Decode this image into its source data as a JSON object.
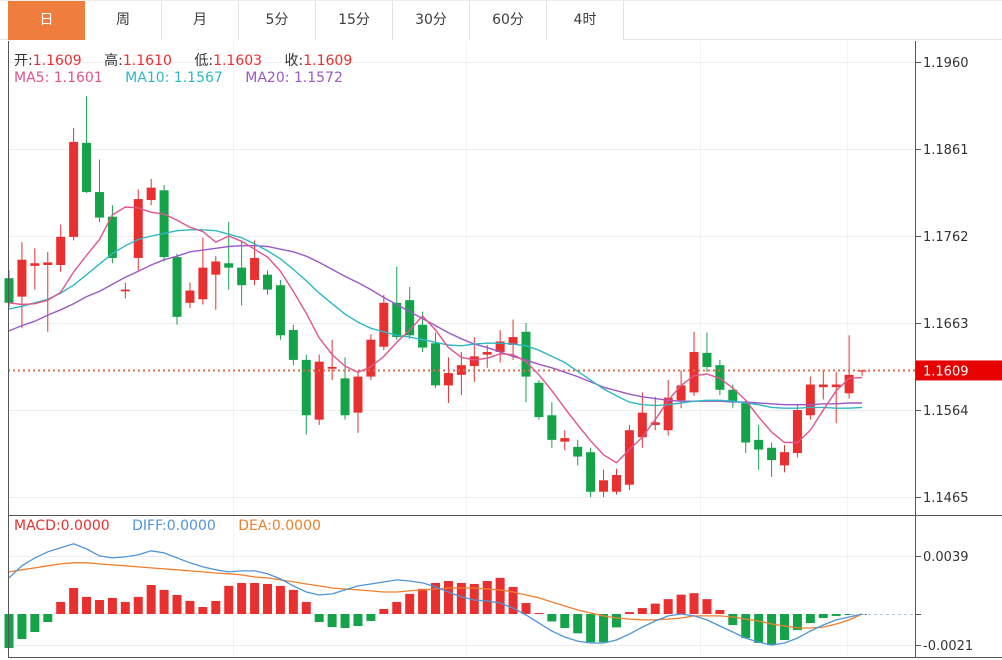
{
  "tabs": {
    "items": [
      {
        "label": "日",
        "active": true
      },
      {
        "label": "周",
        "active": false
      },
      {
        "label": "月",
        "active": false
      },
      {
        "label": "5分",
        "active": false
      },
      {
        "label": "15分",
        "active": false
      },
      {
        "label": "30分",
        "active": false
      },
      {
        "label": "60分",
        "active": false
      },
      {
        "label": "4时",
        "active": false
      }
    ]
  },
  "legend_ohlc": {
    "open_label": "开:",
    "open_value": "1.1609",
    "high_label": "高:",
    "high_value": "1.1610",
    "low_label": "低:",
    "low_value": "1.1603",
    "close_label": "收:",
    "close_value": "1.1609"
  },
  "legend_ma": {
    "ma5": "MA5: 1.1601",
    "ma10": "MA10: 1.1567",
    "ma20": "MA20: 1.1572"
  },
  "legend_macd": {
    "macd": "MACD:0.0000",
    "diff": "DIFF:0.0000",
    "dea": "DEA:0.0000"
  },
  "colors": {
    "up": "#e93030",
    "down": "#15a34a",
    "ma5": "#e0558c",
    "ma10": "#2fb8c4",
    "ma20": "#9b59c8",
    "diff": "#4f94d8",
    "dea": "#ee7f2d",
    "tab_active_bg": "#ef7e3e",
    "price_line": "#dd6a4a",
    "price_tag_bg": "#e60000",
    "grid": "#ededed",
    "vgrid": "#f2f2f2",
    "frame": "#555555",
    "zero_dash": "#a8cce4",
    "axis_text": "#333333"
  },
  "chart_data": [
    {
      "type": "candlestick",
      "title": "",
      "ylabel": "",
      "legend_position": "top-left",
      "grid": true,
      "y_ticks": [
        1.196,
        1.1861,
        1.1762,
        1.1663,
        1.1564,
        1.1465
      ],
      "ylim": [
        1.144,
        1.1985
      ],
      "current_price": 1.1609,
      "candles_ohlc": [
        [
          1.1714,
          1.1723,
          1.1681,
          1.1686
        ],
        [
          1.1693,
          1.1755,
          1.1657,
          1.1735
        ],
        [
          1.1728,
          1.1748,
          1.1701,
          1.1731
        ],
        [
          1.1729,
          1.1744,
          1.1653,
          1.1732
        ],
        [
          1.1729,
          1.1775,
          1.1721,
          1.1761
        ],
        [
          1.1761,
          1.1885,
          1.1757,
          1.1869
        ],
        [
          1.1868,
          1.1921,
          1.1811,
          1.1812
        ],
        [
          1.1812,
          1.1849,
          1.1778,
          1.1783
        ],
        [
          1.1784,
          1.1797,
          1.1731,
          1.1737
        ],
        [
          1.1699,
          1.1709,
          1.1691,
          1.1701
        ],
        [
          1.1737,
          1.1815,
          1.1723,
          1.1804
        ],
        [
          1.1803,
          1.1827,
          1.1797,
          1.1817
        ],
        [
          1.1814,
          1.182,
          1.1733,
          1.1738
        ],
        [
          1.1738,
          1.1742,
          1.1661,
          1.167
        ],
        [
          1.1686,
          1.1709,
          1.168,
          1.17
        ],
        [
          1.169,
          1.176,
          1.1684,
          1.1726
        ],
        [
          1.1718,
          1.1739,
          1.1678,
          1.1733
        ],
        [
          1.1731,
          1.1778,
          1.1701,
          1.1726
        ],
        [
          1.1726,
          1.1757,
          1.1683,
          1.1706
        ],
        [
          1.1712,
          1.1757,
          1.1706,
          1.1737
        ],
        [
          1.1718,
          1.1723,
          1.1695,
          1.1701
        ],
        [
          1.1706,
          1.1712,
          1.1644,
          1.1649
        ],
        [
          1.1655,
          1.1661,
          1.1615,
          1.1621
        ],
        [
          1.1621,
          1.1627,
          1.1536,
          1.1558
        ],
        [
          1.1553,
          1.1627,
          1.1547,
          1.1619
        ],
        [
          1.1611,
          1.1644,
          1.1598,
          1.1613
        ],
        [
          1.16,
          1.1624,
          1.1553,
          1.1558
        ],
        [
          1.1561,
          1.1608,
          1.1538,
          1.1602
        ],
        [
          1.1602,
          1.165,
          1.1598,
          1.1644
        ],
        [
          1.1636,
          1.1695,
          1.1632,
          1.1686
        ],
        [
          1.1686,
          1.1727,
          1.1644,
          1.1647
        ],
        [
          1.1689,
          1.1704,
          1.1645,
          1.1649
        ],
        [
          1.1661,
          1.1676,
          1.163,
          1.1635
        ],
        [
          1.164,
          1.1652,
          1.1589,
          1.1592
        ],
        [
          1.1592,
          1.1624,
          1.1572,
          1.1606
        ],
        [
          1.1604,
          1.163,
          1.1581,
          1.1615
        ],
        [
          1.1614,
          1.1647,
          1.1596,
          1.1625
        ],
        [
          1.1627,
          1.1638,
          1.1612,
          1.163
        ],
        [
          1.163,
          1.1655,
          1.1618,
          1.1642
        ],
        [
          1.1638,
          1.1667,
          1.1621,
          1.1647
        ],
        [
          1.1653,
          1.1663,
          1.1573,
          1.1602
        ],
        [
          1.1595,
          1.1598,
          1.1553,
          1.1556
        ],
        [
          1.1558,
          1.1573,
          1.1521,
          1.153
        ],
        [
          1.1528,
          1.1541,
          1.1518,
          1.1532
        ],
        [
          1.1522,
          1.153,
          1.1501,
          1.1511
        ],
        [
          1.1516,
          1.1521,
          1.1465,
          1.1471
        ],
        [
          1.1471,
          1.1496,
          1.1465,
          1.1484
        ],
        [
          1.1471,
          1.1497,
          1.1468,
          1.149
        ],
        [
          1.1479,
          1.1547,
          1.1473,
          1.1541
        ],
        [
          1.1533,
          1.1584,
          1.1521,
          1.1561
        ],
        [
          1.1547,
          1.1579,
          1.1541,
          1.155
        ],
        [
          1.1541,
          1.1598,
          1.1535,
          1.1578
        ],
        [
          1.1575,
          1.1609,
          1.1566,
          1.1592
        ],
        [
          1.1584,
          1.1653,
          1.158,
          1.163
        ],
        [
          1.1629,
          1.1652,
          1.1607,
          1.1613
        ],
        [
          1.1615,
          1.1621,
          1.1581,
          1.1587
        ],
        [
          1.1587,
          1.1593,
          1.1566,
          1.1573
        ],
        [
          1.1572,
          1.1576,
          1.1515,
          1.1527
        ],
        [
          1.153,
          1.1547,
          1.1496,
          1.1519
        ],
        [
          1.1521,
          1.1527,
          1.1488,
          1.1507
        ],
        [
          1.1501,
          1.1524,
          1.1493,
          1.1516
        ],
        [
          1.1515,
          1.157,
          1.151,
          1.1564
        ],
        [
          1.1558,
          1.1602,
          1.1553,
          1.1593
        ],
        [
          1.159,
          1.161,
          1.1576,
          1.1593
        ],
        [
          1.159,
          1.1607,
          1.1549,
          1.1593
        ],
        [
          1.1583,
          1.1649,
          1.1577,
          1.1604
        ],
        [
          1.1609,
          1.161,
          1.1603,
          1.1609
        ]
      ],
      "series": [
        {
          "name": "MA5",
          "values": [
            1.1686,
            1.1684,
            1.1685,
            1.1689,
            1.1698,
            1.1721,
            1.174,
            1.1758,
            1.1786,
            1.1795,
            1.1794,
            1.1789,
            1.1787,
            1.178,
            1.1772,
            1.1767,
            1.1755,
            1.1762,
            1.1756,
            1.1747,
            1.1738,
            1.1722,
            1.1699,
            1.1674,
            1.1646,
            1.1627,
            1.1614,
            1.1607,
            1.1613,
            1.1625,
            1.1641,
            1.1655,
            1.1671,
            1.1655,
            1.1635,
            1.1624,
            1.1621,
            1.1623,
            1.1628,
            1.1627,
            1.1619,
            1.1604,
            1.1586,
            1.1566,
            1.1547,
            1.1529,
            1.1513,
            1.1504,
            1.1519,
            1.1533,
            1.1553,
            1.1575,
            1.1592,
            1.1603,
            1.1605,
            1.16,
            1.1589,
            1.1575,
            1.1556,
            1.1539,
            1.1527,
            1.1527,
            1.1541,
            1.1564,
            1.1586,
            1.16,
            1.1601
          ]
        },
        {
          "name": "MA10",
          "values": [
            1.1679,
            1.1682,
            1.1686,
            1.169,
            1.1697,
            1.1706,
            1.1718,
            1.173,
            1.1742,
            1.1751,
            1.1758,
            1.1762,
            1.1765,
            1.1768,
            1.1769,
            1.1769,
            1.1768,
            1.1764,
            1.176,
            1.1753,
            1.1745,
            1.1736,
            1.1724,
            1.1711,
            1.1697,
            1.1685,
            1.1673,
            1.1664,
            1.1657,
            1.1653,
            1.1649,
            1.1647,
            1.1644,
            1.1641,
            1.1638,
            1.1637,
            1.1639,
            1.164,
            1.164,
            1.1639,
            1.1637,
            1.1632,
            1.1625,
            1.1618,
            1.1608,
            1.1598,
            1.1588,
            1.158,
            1.1573,
            1.157,
            1.1569,
            1.157,
            1.1572,
            1.1574,
            1.1575,
            1.1575,
            1.1574,
            1.1572,
            1.157,
            1.1567,
            1.1566,
            1.1566,
            1.1567,
            1.1567,
            1.1566,
            1.1566,
            1.1567
          ]
        },
        {
          "name": "MA20",
          "values": [
            1.1654,
            1.166,
            1.1665,
            1.1672,
            1.1678,
            1.1685,
            1.1693,
            1.1699,
            1.1707,
            1.1715,
            1.1722,
            1.1729,
            1.1735,
            1.1739,
            1.1744,
            1.1746,
            1.1748,
            1.175,
            1.1751,
            1.1751,
            1.175,
            1.1747,
            1.1744,
            1.1739,
            1.1732,
            1.1724,
            1.1716,
            1.1709,
            1.1701,
            1.1692,
            1.1684,
            1.1676,
            1.1668,
            1.166,
            1.1652,
            1.1645,
            1.1639,
            1.1635,
            1.163,
            1.1625,
            1.1621,
            1.1616,
            1.1612,
            1.1607,
            1.1602,
            1.1596,
            1.159,
            1.1586,
            1.1582,
            1.1579,
            1.1577,
            1.1575,
            1.1574,
            1.1574,
            1.1574,
            1.1574,
            1.1573,
            1.1573,
            1.1572,
            1.1571,
            1.157,
            1.157,
            1.157,
            1.1571,
            1.1571,
            1.1572,
            1.1572
          ]
        }
      ]
    },
    {
      "type": "bar",
      "title": "MACD",
      "y_ticks": [
        0.0039,
        -0.0021
      ],
      "ylim": [
        -0.0029,
        0.0051
      ],
      "histogram": [
        -0.00229,
        -0.00168,
        -0.00121,
        -0.00054,
        0.00081,
        0.00175,
        0.00115,
        0.00094,
        0.00108,
        0.00081,
        0.00115,
        0.00195,
        0.00162,
        0.00128,
        0.00088,
        0.00047,
        0.00088,
        0.00189,
        0.00209,
        0.00209,
        0.00202,
        0.00189,
        0.00162,
        0.00081,
        -0.00054,
        -0.00088,
        -0.00094,
        -0.00081,
        -0.00047,
        0.00034,
        0.00081,
        0.00135,
        0.00169,
        0.00209,
        0.00222,
        0.00209,
        0.00202,
        0.00222,
        0.00243,
        0.00182,
        0.00074,
        7e-05,
        -0.0005,
        -0.00094,
        -0.0013,
        -0.0019,
        -0.0019,
        -0.0009,
        0.00013,
        0.0004,
        0.0007,
        0.001,
        0.0013,
        0.0014,
        0.001,
        0.00027,
        -0.00074,
        -0.00162,
        -0.00195,
        -0.00209,
        -0.00175,
        -0.00108,
        -0.00061,
        -0.00027,
        -0.00013,
        -5e-05,
        0.0
      ],
      "series": [
        {
          "name": "DIFF",
          "values": [
            0.00243,
            0.00324,
            0.00377,
            0.00418,
            0.00445,
            0.00472,
            0.00438,
            0.00391,
            0.00377,
            0.00384,
            0.00398,
            0.00425,
            0.00411,
            0.00377,
            0.00344,
            0.00317,
            0.00297,
            0.00283,
            0.0029,
            0.0029,
            0.0027,
            0.00236,
            0.00189,
            0.00148,
            0.00128,
            0.00135,
            0.00162,
            0.00189,
            0.00202,
            0.00216,
            0.00229,
            0.00222,
            0.00209,
            0.00182,
            0.00148,
            0.00115,
            0.00094,
            0.00088,
            0.00074,
            0.0004,
            -7e-05,
            -0.00061,
            -0.00115,
            -0.00155,
            -0.00182,
            -0.00195,
            -0.00195,
            -0.00175,
            -0.00135,
            -0.00088,
            -0.00047,
            -0.00013,
            0.0,
            -0.00013,
            -0.0004,
            -0.00081,
            -0.00121,
            -0.00162,
            -0.00189,
            -0.00209,
            -0.00195,
            -0.00162,
            -0.00115,
            -0.00074,
            -0.0004,
            -0.0002,
            0.0
          ]
        },
        {
          "name": "DEA",
          "values": [
            0.00283,
            0.00297,
            0.0031,
            0.00324,
            0.00337,
            0.00344,
            0.00344,
            0.00337,
            0.0033,
            0.00324,
            0.00317,
            0.0031,
            0.00303,
            0.00297,
            0.0029,
            0.00283,
            0.00276,
            0.0027,
            0.00263,
            0.00249,
            0.00243,
            0.00229,
            0.00216,
            0.00202,
            0.00189,
            0.00175,
            0.00168,
            0.00162,
            0.00155,
            0.00148,
            0.00148,
            0.00155,
            0.00162,
            0.00168,
            0.00175,
            0.00175,
            0.00175,
            0.00168,
            0.00162,
            0.00148,
            0.00128,
            0.00108,
            0.00081,
            0.00054,
            0.00027,
            7e-05,
            -0.00013,
            -0.00027,
            -0.00034,
            -0.0004,
            -0.0004,
            -0.00034,
            -0.00027,
            -0.00013,
            -0.00013,
            -0.00013,
            -0.0002,
            -0.00034,
            -0.00047,
            -0.00067,
            -0.00081,
            -0.00094,
            -0.00094,
            -0.00088,
            -0.00067,
            -0.0004,
            0.0
          ]
        }
      ]
    }
  ]
}
